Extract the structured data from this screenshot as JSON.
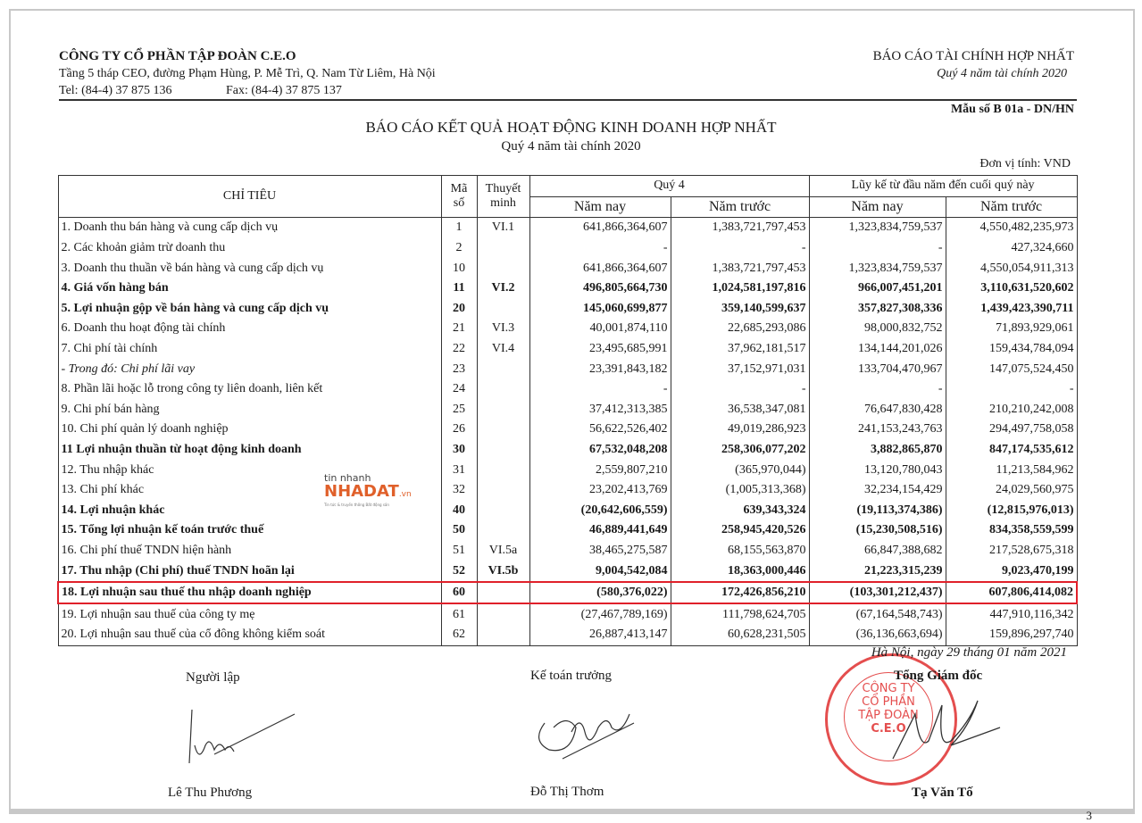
{
  "header": {
    "company": "CÔNG TY CỔ PHẦN TẬP ĐOÀN C.E.O",
    "address": "Tầng 5 tháp CEO, đường Phạm Hùng, P. Mễ Trì, Q. Nam Từ Liêm, Hà Nội",
    "tel": "Tel: (84-4) 37 875 136",
    "fax": "Fax: (84-4) 37 875 137",
    "report_type": "BÁO CÁO TÀI CHÍNH HỢP NHẤT",
    "period": "Quý 4 năm tài chính 2020",
    "form_no": "Mẫu số B 01a - DN/HN"
  },
  "title": "BÁO CÁO KẾT QUẢ HOẠT ĐỘNG KINH DOANH HỢP NHẤT",
  "subtitle": "Quý 4 năm tài chính 2020",
  "unit": "Đơn vị tính: VND",
  "table": {
    "headers": {
      "item": "CHỈ TIÊU",
      "code": "Mã số",
      "note": "Thuyết minh",
      "q4": "Quý 4",
      "ytd": "Lũy kế từ đầu năm đến cuối quý này",
      "this_year": "Năm nay",
      "last_year": "Năm trước"
    },
    "rows": [
      {
        "label": "1. Doanh thu bán hàng và cung cấp dịch vụ",
        "code": "1",
        "note": "VI.1",
        "q4_cur": "641,866,364,607",
        "q4_prev": "1,383,721,797,453",
        "ytd_cur": "1,323,834,759,537",
        "ytd_prev": "4,550,482,235,973"
      },
      {
        "label": "2. Các khoản giảm trừ doanh thu",
        "code": "2",
        "note": "",
        "q4_cur": "-",
        "q4_prev": "-",
        "ytd_cur": "-",
        "ytd_prev": "427,324,660"
      },
      {
        "label": "3. Doanh thu thuần về bán hàng và cung cấp dịch vụ",
        "code": "10",
        "note": "",
        "q4_cur": "641,866,364,607",
        "q4_prev": "1,383,721,797,453",
        "ytd_cur": "1,323,834,759,537",
        "ytd_prev": "4,550,054,911,313"
      },
      {
        "label": "4. Giá vốn hàng bán",
        "code": "11",
        "note": "VI.2",
        "q4_cur": "496,805,664,730",
        "q4_prev": "1,024,581,197,816",
        "ytd_cur": "966,007,451,201",
        "ytd_prev": "3,110,631,520,602"
      },
      {
        "label": "5. Lợi nhuận gộp về bán hàng và cung cấp dịch vụ",
        "code": "20",
        "note": "",
        "q4_cur": "145,060,699,877",
        "q4_prev": "359,140,599,637",
        "ytd_cur": "357,827,308,336",
        "ytd_prev": "1,439,423,390,711"
      },
      {
        "label": "6. Doanh thu hoạt động tài chính",
        "code": "21",
        "note": "VI.3",
        "q4_cur": "40,001,874,110",
        "q4_prev": "22,685,293,086",
        "ytd_cur": "98,000,832,752",
        "ytd_prev": "71,893,929,061"
      },
      {
        "label": "7. Chi phí tài chính",
        "code": "22",
        "note": "VI.4",
        "q4_cur": "23,495,685,991",
        "q4_prev": "37,962,181,517",
        "ytd_cur": "134,144,201,026",
        "ytd_prev": "159,434,784,094"
      },
      {
        "label": " - Trong đó: Chi phí lãi vay",
        "code": "23",
        "note": "",
        "q4_cur": "23,391,843,182",
        "q4_prev": "37,152,971,031",
        "ytd_cur": "133,704,470,967",
        "ytd_prev": "147,075,524,450"
      },
      {
        "label": "8. Phần lãi hoặc lỗ trong công ty liên doanh, liên kết",
        "code": "24",
        "note": "",
        "q4_cur": "-",
        "q4_prev": "-",
        "ytd_cur": "-",
        "ytd_prev": "-"
      },
      {
        "label": "9. Chi phí bán hàng",
        "code": "25",
        "note": "",
        "q4_cur": "37,412,313,385",
        "q4_prev": "36,538,347,081",
        "ytd_cur": "76,647,830,428",
        "ytd_prev": "210,210,242,008"
      },
      {
        "label": "10. Chi phí quản lý doanh nghiệp",
        "code": "26",
        "note": "",
        "q4_cur": "56,622,526,402",
        "q4_prev": "49,019,286,923",
        "ytd_cur": "241,153,243,763",
        "ytd_prev": "294,497,758,058"
      },
      {
        "label": "11 Lợi nhuận thuần từ hoạt động kinh doanh",
        "code": "30",
        "note": "",
        "q4_cur": "67,532,048,208",
        "q4_prev": "258,306,077,202",
        "ytd_cur": "3,882,865,870",
        "ytd_prev": "847,174,535,612"
      },
      {
        "label": "12. Thu nhập khác",
        "code": "31",
        "note": "",
        "q4_cur": "2,559,807,210",
        "q4_prev": "(365,970,044)",
        "ytd_cur": "13,120,780,043",
        "ytd_prev": "11,213,584,962"
      },
      {
        "label": "13. Chi phí khác",
        "code": "32",
        "note": "",
        "q4_cur": "23,202,413,769",
        "q4_prev": "(1,005,313,368)",
        "ytd_cur": "32,234,154,429",
        "ytd_prev": "24,029,560,975"
      },
      {
        "label": "14. Lợi nhuận khác",
        "code": "40",
        "note": "",
        "q4_cur": "(20,642,606,559)",
        "q4_prev": "639,343,324",
        "ytd_cur": "(19,113,374,386)",
        "ytd_prev": "(12,815,976,013)"
      },
      {
        "label": "15. Tổng lợi nhuận kế toán trước thuế",
        "code": "50",
        "note": "",
        "q4_cur": "46,889,441,649",
        "q4_prev": "258,945,420,526",
        "ytd_cur": "(15,230,508,516)",
        "ytd_prev": "834,358,559,599"
      },
      {
        "label": "16. Chi phí thuế TNDN hiện hành",
        "code": "51",
        "note": "VI.5a",
        "q4_cur": "38,465,275,587",
        "q4_prev": "68,155,563,870",
        "ytd_cur": "66,847,388,682",
        "ytd_prev": "217,528,675,318"
      },
      {
        "label": "17. Thu nhập (Chi phí) thuế TNDN hoãn lại",
        "code": "52",
        "note": "VI.5b",
        "q4_cur": "9,004,542,084",
        "q4_prev": "18,363,000,446",
        "ytd_cur": "21,223,315,239",
        "ytd_prev": "9,023,470,199"
      },
      {
        "label": "18. Lợi nhuận sau thuế thu nhập doanh nghiệp",
        "code": "60",
        "note": "",
        "q4_cur": "(580,376,022)",
        "q4_prev": "172,426,856,210",
        "ytd_cur": "(103,301,212,437)",
        "ytd_prev": "607,806,414,082"
      },
      {
        "label": "19. Lợi nhuận sau thuế của công ty mẹ",
        "code": "61",
        "note": "",
        "q4_cur": "(27,467,789,169)",
        "q4_prev": "111,798,624,705",
        "ytd_cur": "(67,164,548,743)",
        "ytd_prev": "447,910,116,342"
      },
      {
        "label": "20. Lợi nhuận sau thuế của cổ đông không kiểm soát",
        "code": "62",
        "note": "",
        "q4_cur": "26,887,413,147",
        "q4_prev": "60,628,231,505",
        "ytd_cur": "(36,136,663,694)",
        "ytd_prev": "159,896,297,740"
      }
    ],
    "highlight_color": "#e0202a"
  },
  "watermark": {
    "top": "tin nhanh",
    "brand": "NHADAT",
    "tld": ".vn",
    "tagline": "Tin tức & truyền thông Bất động sản"
  },
  "signatures": {
    "date": "Hà Nội, ngày 29 tháng 01 năm 2021",
    "preparer_role": "Người lập",
    "preparer_name": "Lê Thu Phương",
    "accountant_role": "Kế toán trưởng",
    "accountant_name": "Đỗ Thị Thơm",
    "director_role": "Tổng Giám đốc",
    "director_name": "Tạ Văn Tố",
    "stamp_text": "CÔNG TY CỔ PHẦN TẬP ĐOÀN C.E.O"
  },
  "page_number": "3"
}
